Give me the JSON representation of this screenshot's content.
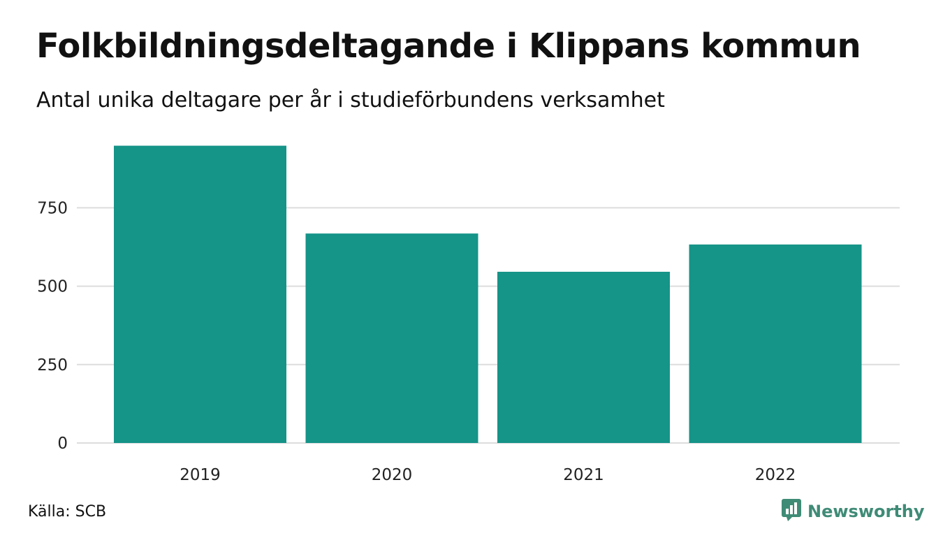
{
  "title": "Folkbildningsdeltagande i Klippans kommun",
  "subtitle": "Antal unika deltagare per år i studieförbundens verksamhet",
  "source": "Källa: SCB",
  "brand": {
    "name": "Newsworthy",
    "icon": "newsworthy-logo-icon",
    "color": "#3f8b76"
  },
  "colors": {
    "bar": "#159488",
    "grid": "#dddddd",
    "text": "#222222"
  },
  "chart_data": {
    "type": "bar",
    "categories": [
      "2019",
      "2020",
      "2021",
      "2022"
    ],
    "values": [
      948,
      668,
      546,
      633
    ],
    "ylim": [
      0,
      1000
    ],
    "yticks": [
      0,
      250,
      500,
      750
    ],
    "grid": true,
    "legend": "none"
  }
}
